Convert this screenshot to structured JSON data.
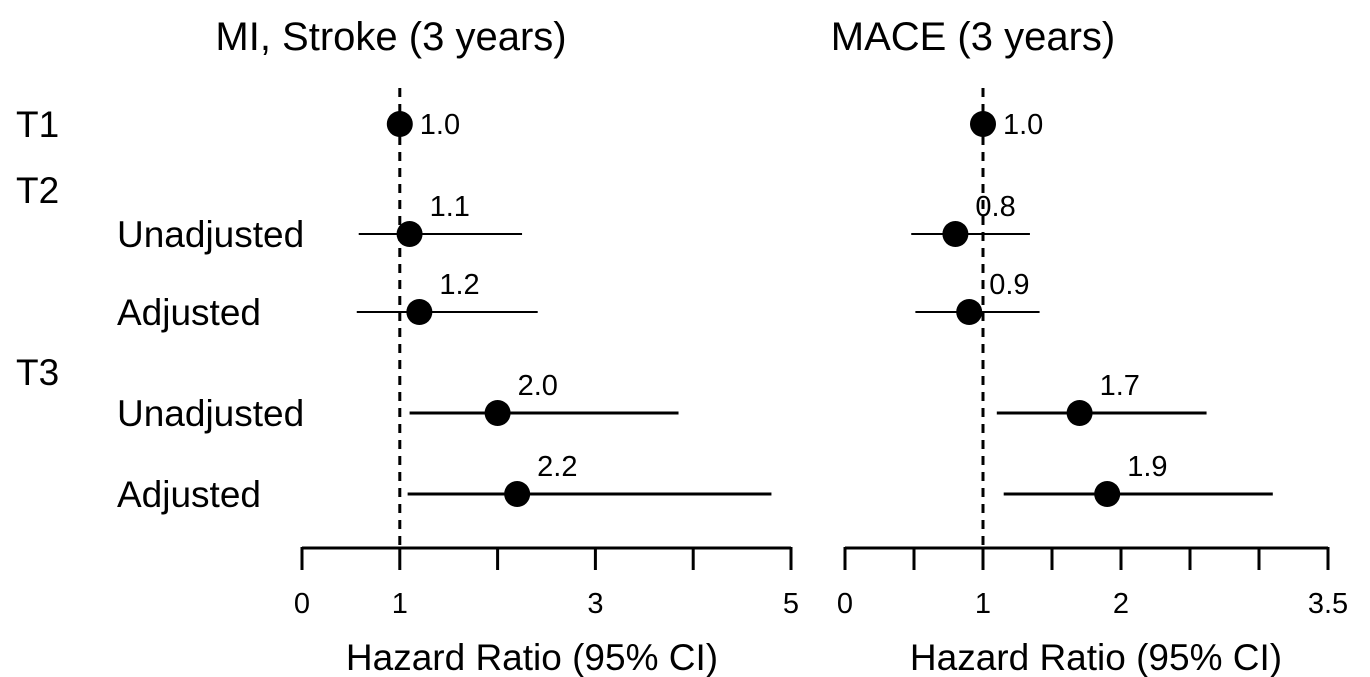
{
  "rows": [
    {
      "label": "T1",
      "kind": "group"
    },
    {
      "label": "T2",
      "kind": "group"
    },
    {
      "label": "Unadjusted",
      "kind": "estimate"
    },
    {
      "label": "Adjusted",
      "kind": "estimate"
    },
    {
      "label": "T3",
      "kind": "group"
    },
    {
      "label": "Unadjusted",
      "kind": "estimate"
    },
    {
      "label": "Adjusted",
      "kind": "estimate"
    }
  ],
  "chart_data": [
    {
      "type": "forest",
      "title": "MI, Stroke (3 years)",
      "xlabel": "Hazard Ratio (95% CI)",
      "xlim": [
        0,
        5
      ],
      "xticks": [
        0,
        1,
        2,
        3,
        4,
        5
      ],
      "xticklabels": [
        "0",
        "1",
        "",
        "3",
        "",
        "5"
      ],
      "reference_line": 1,
      "points": [
        {
          "group": "T1",
          "row": "T1",
          "hr": 1.0,
          "label": "1.0",
          "ci": null
        },
        {
          "group": "T2",
          "row": "Unadjusted",
          "hr": 1.1,
          "label": "1.1",
          "ci": [
            0.58,
            2.25
          ]
        },
        {
          "group": "T2",
          "row": "Adjusted",
          "hr": 1.2,
          "label": "1.2",
          "ci": [
            0.56,
            2.41
          ]
        },
        {
          "group": "T3",
          "row": "Unadjusted",
          "hr": 2.0,
          "label": "2.0",
          "ci": [
            1.1,
            3.85
          ]
        },
        {
          "group": "T3",
          "row": "Adjusted",
          "hr": 2.2,
          "label": "2.2",
          "ci": [
            1.08,
            4.8
          ]
        }
      ]
    },
    {
      "type": "forest",
      "title": "MACE (3 years)",
      "xlabel": "Hazard Ratio (95% CI)",
      "xlim": [
        0,
        3.5
      ],
      "xticks": [
        0,
        0.5,
        1,
        1.5,
        2,
        2.5,
        3,
        3.5
      ],
      "xticklabels": [
        "0",
        "",
        "1",
        "",
        "2",
        "",
        "",
        "3.5"
      ],
      "reference_line": 1,
      "points": [
        {
          "group": "T1",
          "row": "T1",
          "hr": 1.0,
          "label": "1.0",
          "ci": null
        },
        {
          "group": "T2",
          "row": "Unadjusted",
          "hr": 0.8,
          "label": "0.8",
          "ci": [
            0.48,
            1.34
          ]
        },
        {
          "group": "T2",
          "row": "Adjusted",
          "hr": 0.9,
          "label": "0.9",
          "ci": [
            0.51,
            1.41
          ]
        },
        {
          "group": "T3",
          "row": "Unadjusted",
          "hr": 1.7,
          "label": "1.7",
          "ci": [
            1.1,
            2.62
          ]
        },
        {
          "group": "T3",
          "row": "Adjusted",
          "hr": 1.9,
          "label": "1.9",
          "ci": [
            1.15,
            3.1
          ]
        }
      ]
    }
  ]
}
